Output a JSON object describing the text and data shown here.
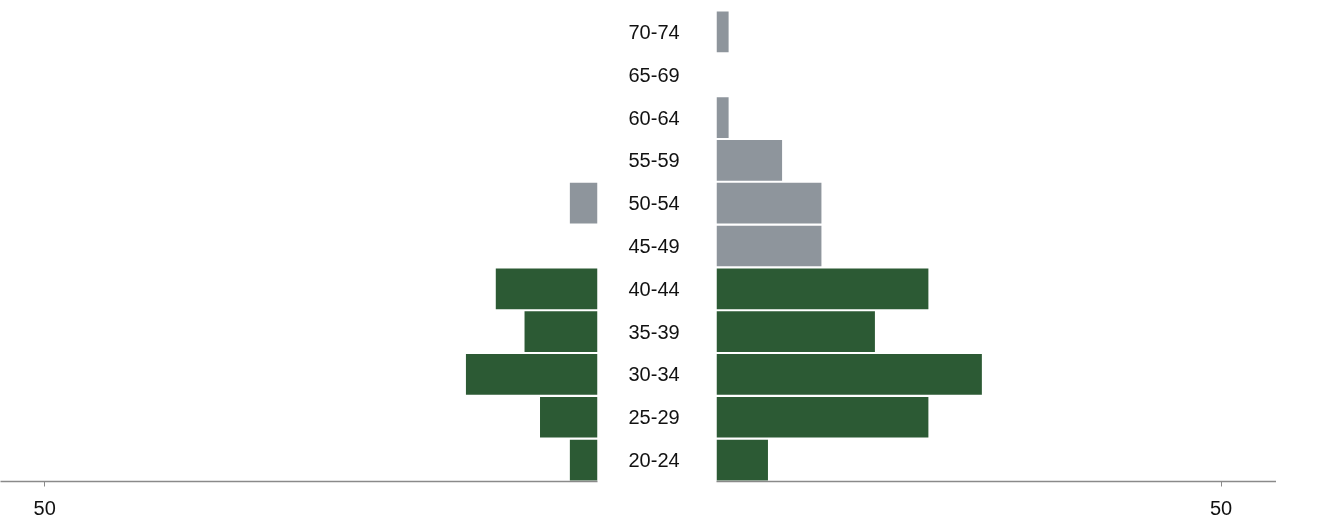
{
  "chart_data": [
    {
      "type": "bar",
      "orientation": "horizontal",
      "categories": [
        "70-74",
        "65-69",
        "60-64",
        "55-59",
        "50-54",
        "45-49",
        "40-44",
        "35-39",
        "30-34",
        "25-29",
        "20-24"
      ],
      "xlim": [
        54,
        0
      ],
      "xticks": [
        50
      ],
      "grid": false,
      "series": [
        {
          "colors": [
            "#8e959c",
            "#8e959c",
            "#8e959c",
            "#8e959c",
            "#8e959c",
            "#8e959c",
            "#2c5a34",
            "#2c5a34",
            "#2c5a34",
            "#2c5a34",
            "#2c5a34"
          ],
          "values": [
            null,
            null,
            null,
            null,
            2.5,
            null,
            9.2,
            6.6,
            11.9,
            5.2,
            2.5
          ]
        }
      ]
    },
    {
      "type": "bar",
      "orientation": "horizontal",
      "categories": [
        null,
        null,
        null,
        null,
        null,
        null,
        null,
        null,
        null,
        null,
        null
      ],
      "xlim": [
        0,
        55.5
      ],
      "xticks": [
        50
      ],
      "tick_labels": "x",
      "grid": false,
      "series": [
        {
          "colors": [
            "#8e959c",
            "#8e959c",
            "#8e959c",
            "#8e959c",
            "#8e959c",
            "#8e959c",
            "#2c5a34",
            "#2c5a34",
            "#2c5a34",
            "#2c5a34",
            "#2c5a34"
          ],
          "values": [
            1.2,
            null,
            1.2,
            6.5,
            10.4,
            10.4,
            21,
            15.7,
            26.3,
            21,
            5.1
          ]
        }
      ]
    }
  ]
}
